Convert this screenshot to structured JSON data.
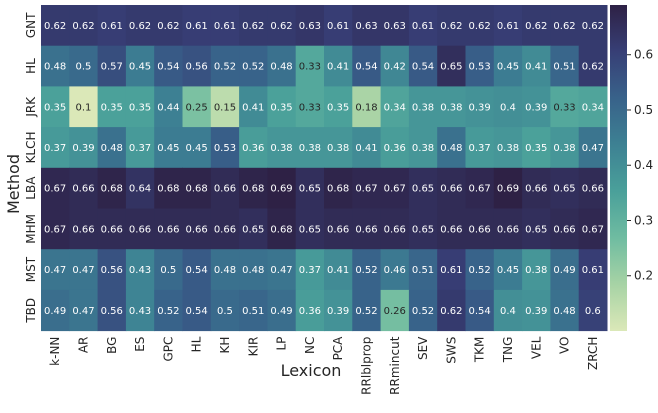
{
  "chart_data": {
    "type": "heatmap",
    "xlabel": "Lexicon",
    "ylabel": "Method",
    "columns": [
      "k-NN",
      "AR",
      "BG",
      "ES",
      "GPC",
      "HL",
      "KH",
      "KIR",
      "LP",
      "NC",
      "PCA",
      "RRlblprop",
      "RRmincut",
      "SEV",
      "SWS",
      "TKM",
      "TNG",
      "VEL",
      "VO",
      "ZRCH"
    ],
    "rows": [
      "GNT",
      "HL",
      "JRK",
      "KLCH",
      "LBA",
      "MHM",
      "MST",
      "TBD"
    ],
    "values": [
      [
        0.62,
        0.62,
        0.61,
        0.62,
        0.62,
        0.61,
        0.61,
        0.62,
        0.62,
        0.63,
        0.61,
        0.63,
        0.63,
        0.61,
        0.62,
        0.62,
        0.61,
        0.62,
        0.62,
        0.62
      ],
      [
        0.48,
        0.5,
        0.57,
        0.45,
        0.54,
        0.56,
        0.52,
        0.52,
        0.48,
        0.33,
        0.41,
        0.54,
        0.42,
        0.54,
        0.65,
        0.53,
        0.45,
        0.41,
        0.51,
        0.62
      ],
      [
        0.35,
        0.1,
        0.35,
        0.35,
        0.44,
        0.25,
        0.15,
        0.41,
        0.35,
        0.33,
        0.35,
        0.18,
        0.34,
        0.38,
        0.38,
        0.39,
        0.4,
        0.39,
        0.33,
        0.34
      ],
      [
        0.37,
        0.39,
        0.48,
        0.37,
        0.45,
        0.45,
        0.53,
        0.36,
        0.38,
        0.38,
        0.38,
        0.41,
        0.36,
        0.38,
        0.48,
        0.37,
        0.38,
        0.35,
        0.38,
        0.47
      ],
      [
        0.67,
        0.66,
        0.68,
        0.64,
        0.68,
        0.68,
        0.66,
        0.68,
        0.69,
        0.65,
        0.68,
        0.67,
        0.67,
        0.65,
        0.66,
        0.67,
        0.69,
        0.66,
        0.65,
        0.66
      ],
      [
        0.67,
        0.66,
        0.66,
        0.66,
        0.66,
        0.66,
        0.66,
        0.65,
        0.68,
        0.65,
        0.66,
        0.66,
        0.66,
        0.65,
        0.66,
        0.66,
        0.66,
        0.65,
        0.66,
        0.67
      ],
      [
        0.47,
        0.47,
        0.56,
        0.43,
        0.5,
        0.54,
        0.48,
        0.48,
        0.47,
        0.37,
        0.41,
        0.52,
        0.46,
        0.51,
        0.61,
        0.52,
        0.45,
        0.38,
        0.49,
        0.61
      ],
      [
        0.49,
        0.47,
        0.56,
        0.43,
        0.52,
        0.54,
        0.5,
        0.51,
        0.49,
        0.36,
        0.39,
        0.52,
        0.26,
        0.52,
        0.62,
        0.54,
        0.4,
        0.39,
        0.48,
        0.6
      ]
    ],
    "colorbar": {
      "min": 0.1,
      "max": 0.69,
      "ticks": [
        0.2,
        0.3,
        0.4,
        0.5,
        0.6
      ]
    },
    "colormap": [
      "#dbe8b8",
      "#a7d3a5",
      "#6fbca1",
      "#4aa09a",
      "#3d8193",
      "#38628a",
      "#373f76",
      "#2e2145"
    ],
    "grid": false,
    "legend": "colorbar-right"
  }
}
